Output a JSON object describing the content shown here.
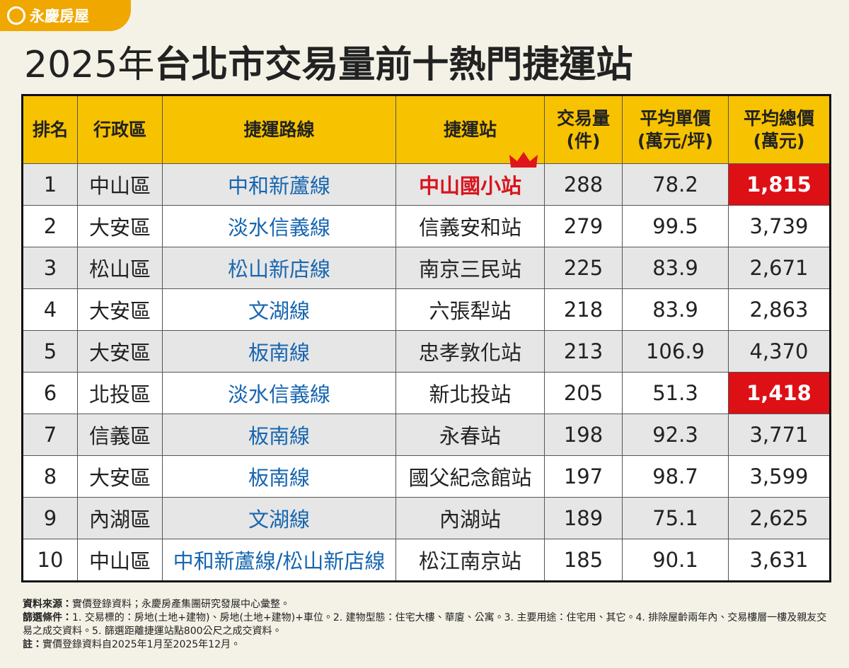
{
  "brand": "永慶房屋",
  "title": {
    "prefix": "2025年",
    "main": "台北市交易量前十熱門捷運站"
  },
  "table": {
    "headers": [
      "排名",
      "行政區",
      "捷運路線",
      "捷運站",
      "交易量\n(件)",
      "平均單價\n(萬元/坪)",
      "平均總價\n(萬元)"
    ],
    "rows": [
      [
        "1",
        "中山區",
        "中和新蘆線",
        "中山國小站",
        "288",
        "78.2",
        "1,815"
      ],
      [
        "2",
        "大安區",
        "淡水信義線",
        "信義安和站",
        "279",
        "99.5",
        "3,739"
      ],
      [
        "3",
        "松山區",
        "松山新店線",
        "南京三民站",
        "225",
        "83.9",
        "2,671"
      ],
      [
        "4",
        "大安區",
        "文湖線",
        "六張犁站",
        "218",
        "83.9",
        "2,863"
      ],
      [
        "5",
        "大安區",
        "板南線",
        "忠孝敦化站",
        "213",
        "106.9",
        "4,370"
      ],
      [
        "6",
        "北投區",
        "淡水信義線",
        "新北投站",
        "205",
        "51.3",
        "1,418"
      ],
      [
        "7",
        "信義區",
        "板南線",
        "永春站",
        "198",
        "92.3",
        "3,771"
      ],
      [
        "8",
        "大安區",
        "板南線",
        "國父紀念館站",
        "197",
        "98.7",
        "3,599"
      ],
      [
        "9",
        "內湖區",
        "文湖線",
        "內湖站",
        "189",
        "75.1",
        "2,625"
      ],
      [
        "10",
        "中山區",
        "中和新蘆線/松山新店線",
        "松江南京站",
        "185",
        "90.1",
        "3,631"
      ]
    ]
  },
  "notes": [
    {
      "label": "資料來源：",
      "text": "實價登錄資料；永慶房產集團研究發展中心彙整。"
    },
    {
      "label": "篩選條件：",
      "text": "1. 交易標的：房地(土地+建物)、房地(土地+建物)+車位。2. 建物型態：住宅大樓、華廈、公寓。3. 主要用途：住宅用、其它。4. 排除屋齡兩年內、交易樓層一樓及親友交易之成交資料。5. 篩選距離捷運站點800公尺之成交資料。"
    },
    {
      "label": "註：",
      "text": "實價登錄資料自2025年1月至2025年12月。"
    }
  ]
}
